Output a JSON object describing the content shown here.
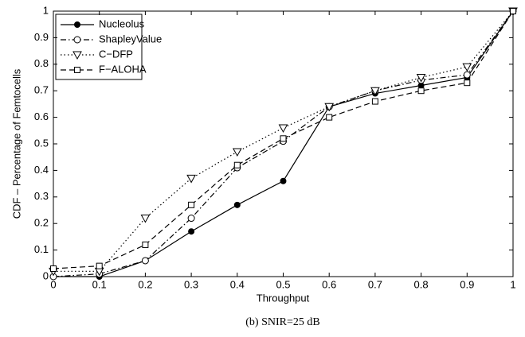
{
  "chart_data": {
    "type": "line",
    "caption": "(b) SNIR=25 dB",
    "xlabel": "Throughput",
    "ylabel": "CDF – Percentage of Femtocells",
    "x": [
      0,
      0.1,
      0.2,
      0.3,
      0.4,
      0.5,
      0.6,
      0.7,
      0.8,
      0.9,
      1
    ],
    "series": [
      {
        "name": "Nucleolus",
        "color": "#000000",
        "marker": "filled-circle",
        "dash": "solid",
        "values": [
          0,
          0,
          0.06,
          0.17,
          0.27,
          0.36,
          0.64,
          0.69,
          0.72,
          0.75,
          1
        ]
      },
      {
        "name": "ShapleyValue",
        "color": "#000000",
        "marker": "circle",
        "dash": "dashdot",
        "values": [
          0,
          0.01,
          0.06,
          0.22,
          0.41,
          0.51,
          0.64,
          0.7,
          0.74,
          0.76,
          1
        ]
      },
      {
        "name": "C−DFP",
        "color": "#000000",
        "marker": "triangle-down",
        "dash": "dotted",
        "values": [
          0.02,
          0.02,
          0.22,
          0.37,
          0.47,
          0.56,
          0.64,
          0.7,
          0.75,
          0.79,
          1
        ]
      },
      {
        "name": "F−ALOHA",
        "color": "#000000",
        "marker": "square",
        "dash": "dashed",
        "values": [
          0.03,
          0.04,
          0.12,
          0.27,
          0.42,
          0.52,
          0.6,
          0.66,
          0.7,
          0.73,
          1
        ]
      }
    ],
    "xlim": [
      0,
      1
    ],
    "ylim": [
      0,
      1
    ],
    "xticks": [
      0,
      0.1,
      0.2,
      0.3,
      0.4,
      0.5,
      0.6,
      0.7,
      0.8,
      0.9,
      1
    ],
    "yticks": [
      0,
      0.1,
      0.2,
      0.3,
      0.4,
      0.5,
      0.6,
      0.7,
      0.8,
      0.9,
      1
    ],
    "legend": "upper-left",
    "grid": false
  }
}
